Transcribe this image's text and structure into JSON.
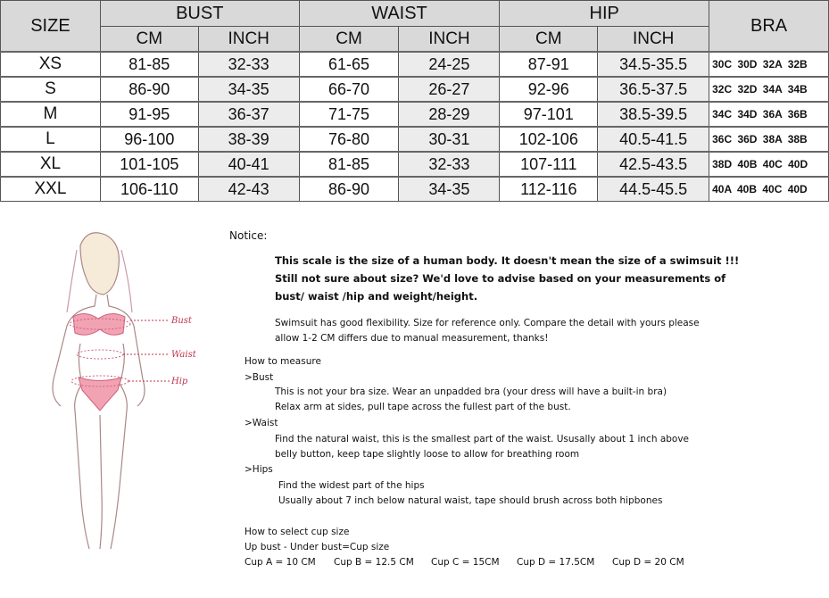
{
  "table": {
    "headers": {
      "size": "SIZE",
      "bust": "BUST",
      "waist": "WAIST",
      "hip": "HIP",
      "bra": "BRA",
      "cm": "CM",
      "inch": "INCH"
    },
    "rows": [
      {
        "size": "XS",
        "bust_cm": "81-85",
        "bust_in": "32-33",
        "waist_cm": "61-65",
        "waist_in": "24-25",
        "hip_cm": "87-91",
        "hip_in": "34.5-35.5",
        "bra": "30C 30D 32A 32B"
      },
      {
        "size": "S",
        "bust_cm": "86-90",
        "bust_in": "34-35",
        "waist_cm": "66-70",
        "waist_in": "26-27",
        "hip_cm": "92-96",
        "hip_in": "36.5-37.5",
        "bra": "32C 32D 34A 34B"
      },
      {
        "size": "M",
        "bust_cm": "91-95",
        "bust_in": "36-37",
        "waist_cm": "71-75",
        "waist_in": "28-29",
        "hip_cm": "97-101",
        "hip_in": "38.5-39.5",
        "bra": "34C 34D 36A 36B"
      },
      {
        "size": "L",
        "bust_cm": "96-100",
        "bust_in": "38-39",
        "waist_cm": "76-80",
        "waist_in": "30-31",
        "hip_cm": "102-106",
        "hip_in": "40.5-41.5",
        "bra": "36C 36D 38A 38B"
      },
      {
        "size": "XL",
        "bust_cm": "101-105",
        "bust_in": "40-41",
        "waist_cm": "81-85",
        "waist_in": "32-33",
        "hip_cm": "107-111",
        "hip_in": "42.5-43.5",
        "bra": "38D 40B 40C 40D"
      },
      {
        "size": "XXL",
        "bust_cm": "106-110",
        "bust_in": "42-43",
        "waist_cm": "86-90",
        "waist_in": "34-35",
        "hip_cm": "112-116",
        "hip_in": "44.5-45.5",
        "bra": "40A 40B 40C 40D"
      }
    ]
  },
  "figure": {
    "bust": "Bust",
    "waist": "Waist",
    "hip": "Hip",
    "accent": "#e86a86"
  },
  "notice": {
    "title": "Notice:",
    "bold": [
      "This scale is the size of a human body. It doesn't mean the size of a swimsuit !!!",
      "Still not sure about size?  We'd love to advise based on your measurements of",
      "bust/ waist /hip and weight/height."
    ],
    "flex": [
      "Swimsuit has good flexibility. Size for reference only. Compare the detail with yours please",
      "allow 1-2 CM differs due to manual measurement, thanks!"
    ],
    "how": "How to measure",
    "bust_h": ">Bust",
    "bust": [
      "This is not your bra size. Wear an unpadded bra (your dress will have a built-in bra)",
      "Relax arm at sides, pull tape across the fullest part of the bust."
    ],
    "waist_h": ">Waist",
    "waist": [
      "Find the natural waist, this is the smallest part of the waist. Ususally about 1 inch above",
      "belly button, keep tape slightly loose to allow for breathing room"
    ],
    "hips_h": ">Hips",
    "hips": [
      "Find the widest part of the hips",
      "Usually about 7 inch below natural waist, tape should brush across both hipbones"
    ],
    "cup_h": "How to select cup size",
    "cup_formula": "Up bust - Under bust=Cup size",
    "cups": [
      "Cup A = 10 CM",
      "Cup B = 12.5 CM",
      "Cup C = 15CM",
      "Cup D = 17.5CM",
      "Cup D = 20 CM"
    ]
  }
}
